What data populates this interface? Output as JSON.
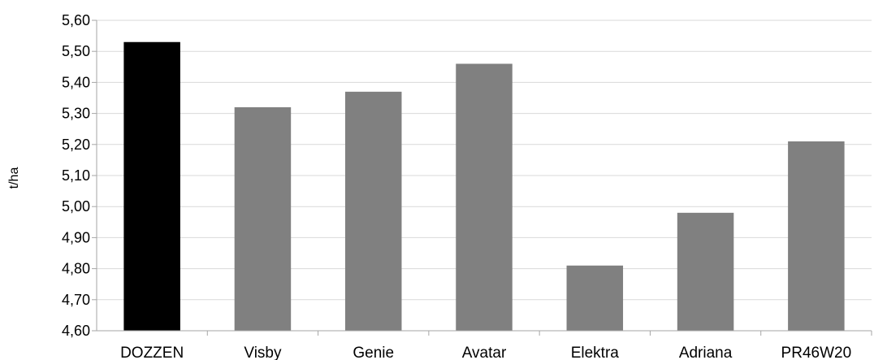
{
  "chart_data": {
    "type": "bar",
    "title": "",
    "xlabel": "",
    "ylabel": "t/ha",
    "categories": [
      "DOZZEN",
      "Visby",
      "Genie",
      "Avatar",
      "Elektra",
      "Adriana",
      "PR46W20"
    ],
    "values": [
      5.53,
      5.32,
      5.37,
      5.46,
      4.81,
      4.98,
      5.21
    ],
    "ylim": [
      4.6,
      5.6
    ],
    "yticks": [
      "5,60",
      "5,50",
      "5,40",
      "5,30",
      "5,20",
      "5,10",
      "5,00",
      "4,90",
      "4,80",
      "4,70",
      "4,60"
    ],
    "grid": true,
    "legend": "none",
    "colors": {
      "highlight_bar": "#000000",
      "bar": "#808080",
      "grid": "#d9d9d9",
      "axis": "#a6a6a6"
    },
    "highlight_index": 0
  }
}
